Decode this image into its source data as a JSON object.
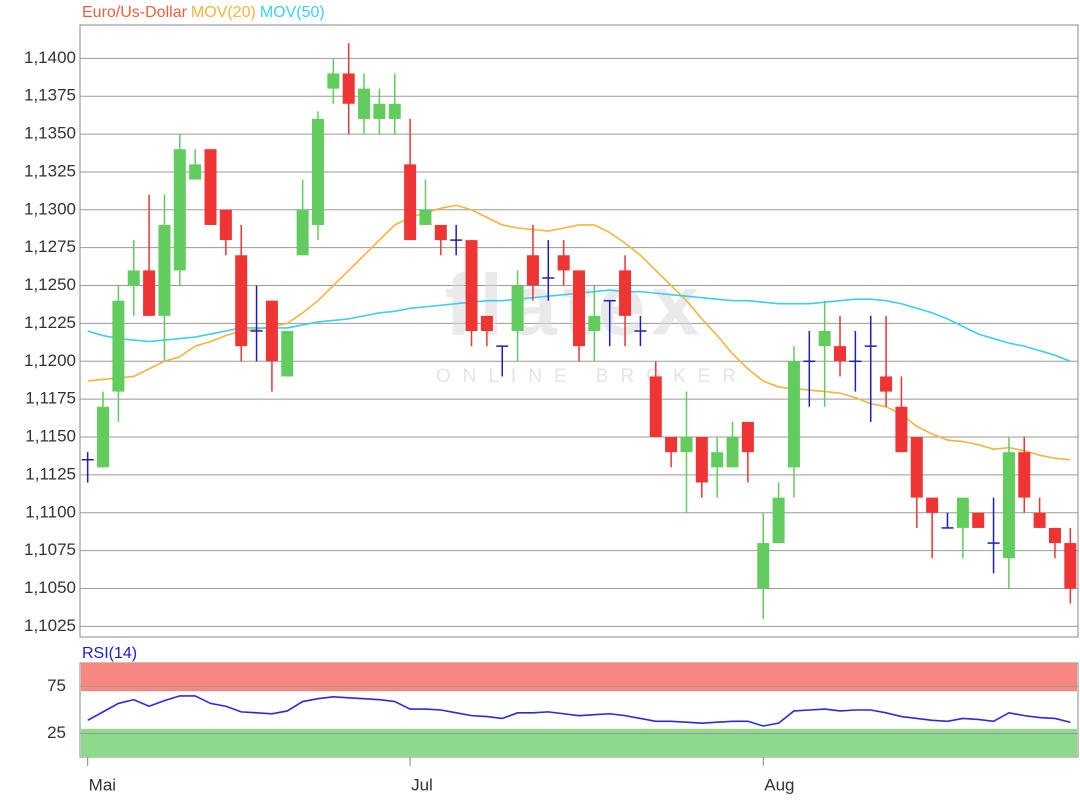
{
  "chart_data": [
    {
      "type": "candlestick",
      "name": "Euro/Us-Dollar",
      "color": "#f0603c",
      "up_color": "#62cc5e",
      "down_color": "#ef3434",
      "doji_color": "#1f1fb8",
      "watermark": "flatex",
      "watermark_subtitle": "ONLINE BROKER",
      "categories": [
        "Mai",
        null,
        null,
        null,
        null,
        null,
        null,
        null,
        null,
        null,
        null,
        null,
        null,
        null,
        null,
        null,
        null,
        null,
        null,
        null,
        null,
        "Jul",
        null,
        null,
        null,
        null,
        null,
        null,
        null,
        null,
        null,
        null,
        null,
        null,
        null,
        null,
        null,
        null,
        null,
        null,
        null,
        null,
        null,
        null,
        "Aug",
        null,
        null,
        null,
        null,
        null,
        null,
        null,
        null,
        null,
        null,
        null,
        null,
        null,
        null,
        null,
        null,
        null,
        null,
        null,
        null
      ],
      "open": [
        1.1135,
        1.113,
        1.118,
        1.125,
        1.126,
        1.123,
        1.126,
        1.132,
        1.134,
        1.13,
        1.127,
        1.122,
        1.124,
        1.119,
        1.127,
        1.129,
        1.138,
        1.139,
        1.136,
        1.136,
        1.136,
        1.133,
        1.129,
        1.129,
        1.128,
        1.128,
        1.123,
        1.121,
        1.122,
        1.127,
        1.1255,
        1.127,
        1.126,
        1.122,
        1.124,
        1.126,
        1.122,
        1.119,
        1.115,
        1.114,
        1.115,
        1.113,
        1.113,
        1.116,
        1.105,
        1.108,
        1.113,
        1.12,
        1.121,
        1.121,
        1.12,
        1.121,
        1.119,
        1.117,
        1.115,
        1.111,
        1.109,
        1.109,
        1.11,
        1.108,
        1.107,
        1.114,
        1.11,
        1.109,
        1.108
      ],
      "high": [
        1.114,
        1.118,
        1.125,
        1.128,
        1.131,
        1.131,
        1.135,
        1.134,
        1.134,
        1.13,
        1.129,
        1.125,
        1.124,
        1.122,
        1.132,
        1.1365,
        1.14,
        1.141,
        1.139,
        1.138,
        1.139,
        1.136,
        1.132,
        1.129,
        1.129,
        1.128,
        1.123,
        1.121,
        1.126,
        1.129,
        1.128,
        1.128,
        1.126,
        1.125,
        1.124,
        1.127,
        1.123,
        1.12,
        1.115,
        1.118,
        1.115,
        1.115,
        1.116,
        1.116,
        1.11,
        1.112,
        1.121,
        1.122,
        1.124,
        1.123,
        1.122,
        1.123,
        1.123,
        1.119,
        1.115,
        1.111,
        1.11,
        1.111,
        1.11,
        1.111,
        1.115,
        1.115,
        1.111,
        1.109,
        1.109
      ],
      "low": [
        1.112,
        1.113,
        1.116,
        1.123,
        1.123,
        1.12,
        1.125,
        1.132,
        1.129,
        1.127,
        1.12,
        1.12,
        1.118,
        1.119,
        1.127,
        1.128,
        1.137,
        1.135,
        1.135,
        1.135,
        1.135,
        1.128,
        1.129,
        1.127,
        1.127,
        1.121,
        1.121,
        1.119,
        1.12,
        1.124,
        1.124,
        1.125,
        1.12,
        1.12,
        1.121,
        1.121,
        1.121,
        1.115,
        1.113,
        1.11,
        1.111,
        1.111,
        1.113,
        1.112,
        1.103,
        1.108,
        1.111,
        1.117,
        1.117,
        1.119,
        1.118,
        1.116,
        1.117,
        1.114,
        1.109,
        1.107,
        1.109,
        1.107,
        1.109,
        1.106,
        1.105,
        1.11,
        1.109,
        1.107,
        1.104
      ],
      "close": [
        1.1135,
        1.117,
        1.124,
        1.126,
        1.123,
        1.129,
        1.134,
        1.133,
        1.129,
        1.128,
        1.121,
        1.122,
        1.12,
        1.122,
        1.13,
        1.136,
        1.139,
        1.137,
        1.138,
        1.137,
        1.137,
        1.128,
        1.13,
        1.128,
        1.128,
        1.122,
        1.122,
        1.121,
        1.125,
        1.125,
        1.1255,
        1.126,
        1.121,
        1.123,
        1.124,
        1.123,
        1.122,
        1.115,
        1.114,
        1.115,
        1.112,
        1.114,
        1.115,
        1.114,
        1.108,
        1.111,
        1.12,
        1.12,
        1.122,
        1.12,
        1.12,
        1.121,
        1.118,
        1.114,
        1.111,
        1.11,
        1.109,
        1.111,
        1.109,
        1.108,
        1.114,
        1.111,
        1.109,
        1.108,
        1.105
      ],
      "overlays": [
        {
          "name": "MOV(20)",
          "color": "#f6b43c",
          "values": [
            1.1187,
            1.1188,
            1.1189,
            1.119,
            1.1195,
            1.12,
            1.1203,
            1.121,
            1.1213,
            1.1217,
            1.122,
            1.1221,
            1.1223,
            1.1225,
            1.1232,
            1.124,
            1.125,
            1.126,
            1.127,
            1.128,
            1.129,
            1.1295,
            1.1298,
            1.1301,
            1.1303,
            1.13,
            1.1295,
            1.129,
            1.1288,
            1.1287,
            1.1286,
            1.1288,
            1.129,
            1.129,
            1.1285,
            1.1278,
            1.127,
            1.126,
            1.125,
            1.124,
            1.1228,
            1.1217,
            1.1205,
            1.1195,
            1.1187,
            1.1183,
            1.1182,
            1.1181,
            1.118,
            1.1179,
            1.1176,
            1.1172,
            1.117,
            1.1165,
            1.1157,
            1.1152,
            1.1148,
            1.1147,
            1.1145,
            1.1142,
            1.1143,
            1.1141,
            1.1138,
            1.1136,
            1.1135
          ]
        },
        {
          "name": "MOV(50)",
          "color": "#3ccff0",
          "values": [
            1.122,
            1.1217,
            1.1215,
            1.1214,
            1.1213,
            1.1214,
            1.1215,
            1.1216,
            1.1218,
            1.122,
            1.1222,
            1.1222,
            1.1222,
            1.1222,
            1.1224,
            1.1226,
            1.1227,
            1.1228,
            1.123,
            1.1232,
            1.1233,
            1.1235,
            1.1236,
            1.1237,
            1.1238,
            1.1239,
            1.124,
            1.124,
            1.1241,
            1.1242,
            1.1243,
            1.1244,
            1.1245,
            1.1246,
            1.1247,
            1.1246,
            1.1246,
            1.1245,
            1.1244,
            1.1243,
            1.1242,
            1.1241,
            1.124,
            1.124,
            1.1239,
            1.1238,
            1.1238,
            1.1238,
            1.1239,
            1.124,
            1.1241,
            1.1241,
            1.124,
            1.1238,
            1.1235,
            1.1232,
            1.1228,
            1.1223,
            1.1218,
            1.1215,
            1.1212,
            1.121,
            1.1207,
            1.1204,
            1.12
          ]
        }
      ],
      "ylim": [
        1.1018,
        1.1422
      ],
      "yticks": [
        {
          "value": 1.1025,
          "label": "1,1025"
        },
        {
          "value": 1.105,
          "label": "1,1050"
        },
        {
          "value": 1.1075,
          "label": "1,1075"
        },
        {
          "value": 1.11,
          "label": "1,1100"
        },
        {
          "value": 1.1125,
          "label": "1,1125"
        },
        {
          "value": 1.115,
          "label": "1,1150"
        },
        {
          "value": 1.1175,
          "label": "1,1175"
        },
        {
          "value": 1.12,
          "label": "1,1200"
        },
        {
          "value": 1.1225,
          "label": "1,1225"
        },
        {
          "value": 1.125,
          "label": "1,1250"
        },
        {
          "value": 1.1275,
          "label": "1,1275"
        },
        {
          "value": 1.13,
          "label": "1,1300"
        },
        {
          "value": 1.1325,
          "label": "1,1325"
        },
        {
          "value": 1.135,
          "label": "1,1350"
        },
        {
          "value": 1.1375,
          "label": "1,1375"
        },
        {
          "value": 1.14,
          "label": "1,1400"
        }
      ],
      "grid": true
    },
    {
      "type": "line",
      "title": "RSI(14)",
      "title_color": "#1c1cd8",
      "color": "#2a2ae0",
      "values": [
        39,
        48,
        57,
        61,
        54,
        60,
        65,
        65,
        57,
        54,
        48,
        47,
        46,
        49,
        59,
        62,
        64,
        63,
        62,
        61,
        59,
        51,
        51,
        50,
        47,
        44,
        43,
        41,
        47,
        47,
        48,
        46,
        44,
        45,
        46,
        44,
        41,
        38,
        38,
        37,
        36,
        37,
        38,
        38,
        33,
        36,
        49,
        50,
        51,
        49,
        50,
        50,
        47,
        43,
        41,
        39,
        38,
        41,
        40,
        38,
        47,
        44,
        42,
        41,
        37
      ],
      "zones": [
        {
          "from": 70,
          "to": 100,
          "color": "#f7877f"
        },
        {
          "from": 0,
          "to": 30,
          "color": "#8fd98c"
        }
      ],
      "ylim": [
        0,
        100
      ],
      "yticks": [
        25,
        75
      ],
      "grid": true
    }
  ]
}
